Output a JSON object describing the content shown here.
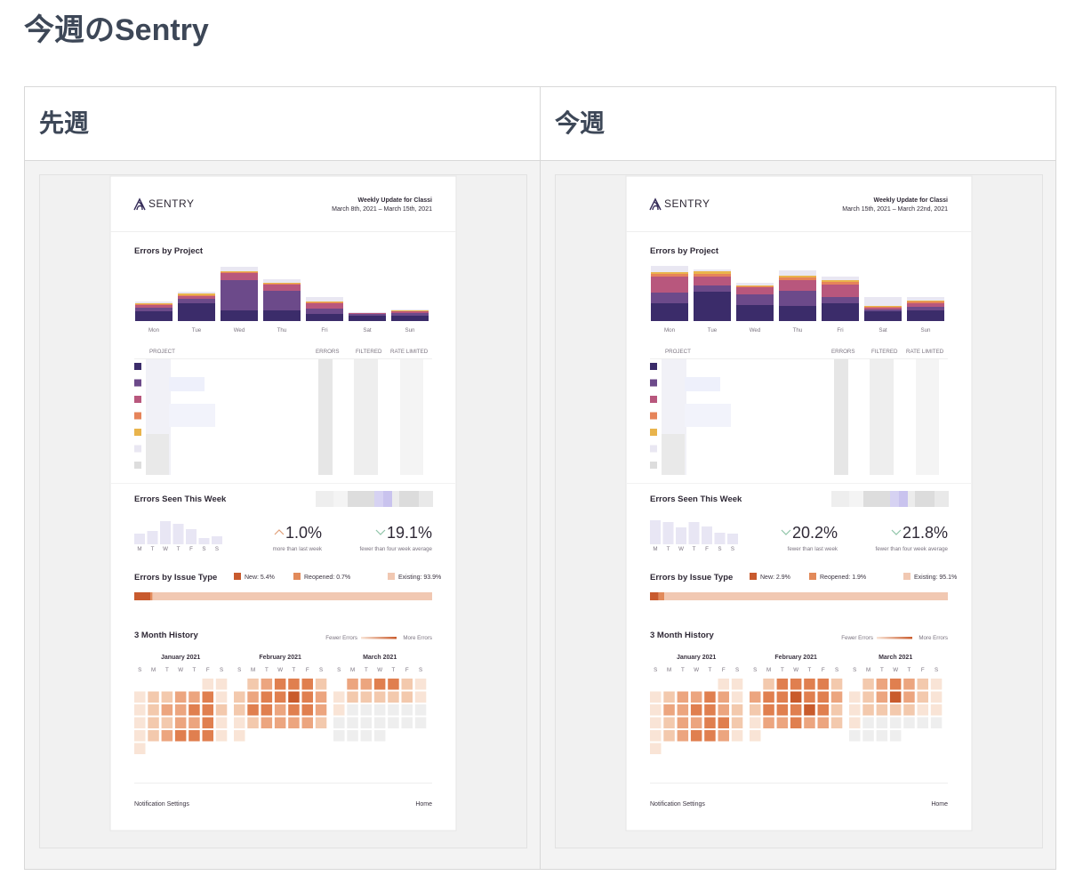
{
  "title": "今週のSentry",
  "columns": [
    {
      "heading": "先週",
      "email": {
        "logo": "SENTRY",
        "header": "Weekly Update for Classi",
        "date_range": "March 8th, 2021 – March 15th, 2021",
        "errors_by_project": {
          "title": "Errors by Project",
          "type": "bar",
          "stacked": true,
          "categories": [
            "Mon",
            "Tue",
            "Wed",
            "Thu",
            "Fri",
            "Sat",
            "Sun"
          ],
          "series": [
            {
              "color": "#3b2c6a",
              "values": [
                11,
                20,
                12,
                12,
                8,
                6,
                6
              ]
            },
            {
              "color": "#6c4a8a",
              "values": [
                4,
                5,
                34,
                22,
                6,
                2,
                3
              ]
            },
            {
              "color": "#b8577d",
              "values": [
                3,
                3,
                8,
                7,
                6,
                1,
                2
              ]
            },
            {
              "color": "#e6845a",
              "values": [
                1,
                1,
                1,
                1,
                1,
                0,
                0
              ]
            },
            {
              "color": "#e9b44c",
              "values": [
                1,
                2,
                1,
                1,
                1,
                0,
                1
              ]
            },
            {
              "color": "#e9e7f2",
              "values": [
                2,
                2,
                5,
                4,
                5,
                1,
                1
              ]
            }
          ]
        },
        "project_table": {
          "columns": [
            "PROJECT",
            "ERRORS",
            "FILTERED",
            "RATE LIMITED"
          ],
          "row_colors": [
            "#3b2c6a",
            "#6c4a8a",
            "#b8577d",
            "#e6845a",
            "#e9b44c",
            "#e9e7f2",
            "#dddddd"
          ]
        },
        "errors_seen": {
          "title": "Errors Seen This Week",
          "type": "bar",
          "categories": [
            "M",
            "T",
            "W",
            "T",
            "F",
            "S",
            "S"
          ],
          "values": [
            12,
            15,
            26,
            23,
            17,
            7,
            9
          ],
          "color": "#e8e6f4",
          "stats": [
            {
              "text": "1.0%",
              "caption": "more than last week",
              "trend": "up"
            },
            {
              "text": "19.1%",
              "caption": "fewer than four week average",
              "trend": "down"
            }
          ]
        },
        "issue_types": {
          "title": "Errors by Issue Type",
          "segments": [
            {
              "label": "New: 5.4%",
              "value": 5.4,
              "color": "#c85a2e"
            },
            {
              "label": "Reopened: 0.7%",
              "value": 0.7,
              "color": "#e28a5a"
            },
            {
              "label": "Existing: 93.9%",
              "value": 93.9,
              "color": "#f1c8b2"
            }
          ]
        },
        "history": {
          "title": "3 Month History",
          "legend_low": "Fewer Errors",
          "legend_high": "More Errors",
          "weekdays": [
            "S",
            "M",
            "T",
            "W",
            "T",
            "F",
            "S"
          ],
          "palette": [
            "#f9e4d6",
            "#f3c9ad",
            "#eca57f",
            "#e07f4f",
            "#c95b2c"
          ],
          "empty_color": "#eeeeee",
          "months": [
            {
              "name": "January 2021",
              "levels": [
                1,
                1,
                1,
                2,
                2,
                3,
                3,
                4,
                1,
                1,
                2,
                3,
                3,
                4,
                4,
                2,
                1,
                2,
                2,
                3,
                3,
                4,
                1,
                1,
                2,
                3,
                4,
                4,
                4,
                1,
                1
              ]
            },
            {
              "name": "February 2021",
              "levels": [
                2,
                3,
                4,
                4,
                4,
                2,
                2,
                3,
                4,
                4,
                5,
                4,
                3,
                2,
                4,
                4,
                3,
                4,
                4,
                3,
                1,
                2,
                3,
                3,
                3,
                3,
                2,
                1
              ]
            },
            {
              "name": "March 2021",
              "levels": [
                3,
                3,
                4,
                4,
                2,
                1,
                1,
                2,
                2,
                2,
                2,
                2,
                1,
                1,
                null,
                null,
                null,
                null,
                null,
                null,
                null,
                null,
                null,
                null,
                null,
                null,
                null,
                null,
                null,
                null,
                null
              ]
            }
          ]
        },
        "footer_left": "Notification Settings",
        "footer_right": "Home"
      }
    },
    {
      "heading": "今週",
      "email": {
        "logo": "SENTRY",
        "header": "Weekly Update for Classi",
        "date_range": "March 15th, 2021 – March 22nd, 2021",
        "errors_by_project": {
          "title": "Errors by Project",
          "type": "bar",
          "stacked": true,
          "categories": [
            "Mon",
            "Tue",
            "Wed",
            "Thu",
            "Fri",
            "Sat",
            "Sun"
          ],
          "series": [
            {
              "color": "#3b2c6a",
              "values": [
                20,
                33,
                18,
                17,
                20,
                11,
                12
              ]
            },
            {
              "color": "#6c4a8a",
              "values": [
                12,
                7,
                12,
                17,
                7,
                2,
                4
              ]
            },
            {
              "color": "#b8577d",
              "values": [
                18,
                10,
                8,
                12,
                14,
                2,
                4
              ]
            },
            {
              "color": "#e6845a",
              "values": [
                3,
                3,
                1,
                3,
                3,
                1,
                2
              ]
            },
            {
              "color": "#e9b44c",
              "values": [
                2,
                3,
                1,
                2,
                2,
                1,
                1
              ]
            },
            {
              "color": "#e9e7f2",
              "values": [
                7,
                2,
                3,
                6,
                4,
                10,
                4
              ]
            }
          ]
        },
        "project_table": {
          "columns": [
            "PROJECT",
            "ERRORS",
            "FILTERED",
            "RATE LIMITED"
          ],
          "row_colors": [
            "#3b2c6a",
            "#6c4a8a",
            "#b8577d",
            "#e6845a",
            "#e9b44c",
            "#e9e7f2",
            "#dddddd"
          ]
        },
        "errors_seen": {
          "title": "Errors Seen This Week",
          "type": "bar",
          "categories": [
            "M",
            "T",
            "W",
            "T",
            "F",
            "S",
            "S"
          ],
          "values": [
            27,
            25,
            19,
            25,
            20,
            13,
            12
          ],
          "color": "#e8e6f4",
          "stats": [
            {
              "text": "20.2%",
              "caption": "fewer than last week",
              "trend": "down"
            },
            {
              "text": "21.8%",
              "caption": "fewer than four week average",
              "trend": "down"
            }
          ]
        },
        "issue_types": {
          "title": "Errors by Issue Type",
          "segments": [
            {
              "label": "New: 2.9%",
              "value": 2.9,
              "color": "#c85a2e"
            },
            {
              "label": "Reopened: 1.9%",
              "value": 1.9,
              "color": "#e28a5a"
            },
            {
              "label": "Existing: 95.1%",
              "value": 95.1,
              "color": "#f1c8b2"
            }
          ]
        },
        "history": {
          "title": "3 Month History",
          "legend_low": "Fewer Errors",
          "legend_high": "More Errors",
          "weekdays": [
            "S",
            "M",
            "T",
            "W",
            "T",
            "F",
            "S"
          ],
          "palette": [
            "#f9e4d6",
            "#f3c9ad",
            "#eca57f",
            "#e07f4f",
            "#c95b2c"
          ],
          "empty_color": "#eeeeee",
          "months": [
            {
              "name": "January 2021",
              "levels": [
                1,
                1,
                1,
                2,
                3,
                3,
                4,
                3,
                1,
                1,
                3,
                3,
                4,
                4,
                3,
                2,
                1,
                2,
                3,
                3,
                4,
                4,
                2,
                1,
                2,
                3,
                4,
                4,
                3,
                1,
                1
              ]
            },
            {
              "name": "February 2021",
              "levels": [
                2,
                4,
                4,
                4,
                4,
                2,
                3,
                4,
                4,
                5,
                4,
                4,
                3,
                2,
                4,
                4,
                4,
                5,
                4,
                2,
                1,
                3,
                3,
                4,
                3,
                3,
                2,
                1
              ]
            },
            {
              "name": "March 2021",
              "levels": [
                2,
                3,
                4,
                3,
                2,
                1,
                1,
                2,
                3,
                5,
                3,
                2,
                1,
                1,
                2,
                2,
                2,
                2,
                1,
                1,
                1,
                null,
                null,
                null,
                null,
                null,
                null,
                null,
                null,
                null,
                null
              ]
            }
          ]
        },
        "footer_left": "Notification Settings",
        "footer_right": "Home"
      }
    }
  ]
}
